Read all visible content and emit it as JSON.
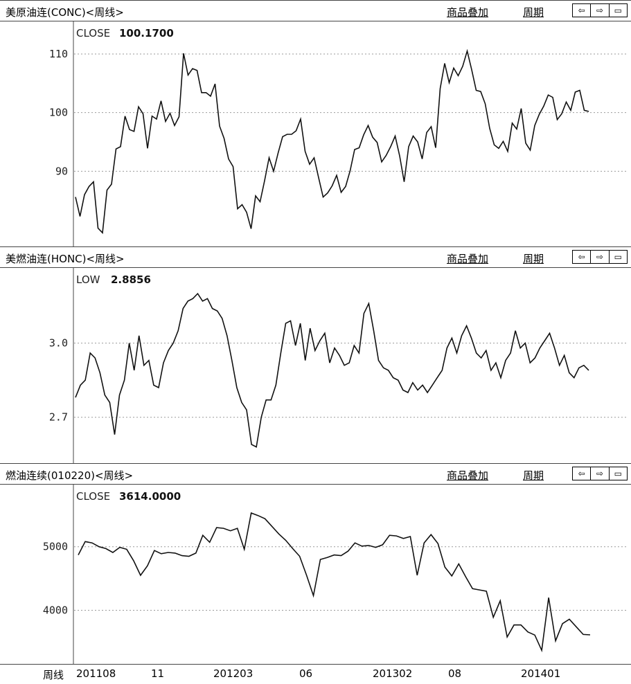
{
  "menu": {
    "overlay": "商品叠加",
    "period": "周期"
  },
  "nav": {
    "left": "⇦",
    "right": "⇨",
    "layout": "▭"
  },
  "x_axis": {
    "unit_label": "周线",
    "ticks": [
      "201108",
      "11",
      "201203",
      "06",
      "201302",
      "08",
      "201401"
    ]
  },
  "chart_data": [
    {
      "type": "line",
      "panel_title": "美原油连(CONC)<周线>",
      "value_name": "CLOSE",
      "value_current": "100.1700",
      "y_ticks": [
        "110",
        "100",
        "90"
      ],
      "ylim": [
        78,
        112
      ],
      "grid": true,
      "values": [
        85.6,
        82.3,
        86.0,
        87.4,
        88.2,
        80.3,
        79.5,
        86.8,
        87.8,
        93.8,
        94.2,
        99.4,
        97.1,
        96.8,
        101.0,
        99.8,
        93.9,
        99.4,
        98.9,
        102.0,
        98.5,
        99.9,
        97.8,
        99.3,
        110.1,
        106.4,
        107.5,
        107.2,
        103.4,
        103.4,
        102.8,
        104.9,
        97.7,
        95.6,
        92.1,
        90.8,
        83.6,
        84.3,
        83.0,
        80.2,
        85.8,
        84.8,
        88.4,
        92.3,
        90.0,
        93.1,
        95.9,
        96.3,
        96.3,
        96.9,
        98.9,
        93.4,
        91.2,
        92.3,
        88.9,
        85.6,
        86.3,
        87.5,
        89.3,
        86.4,
        87.4,
        90.1,
        93.7,
        94.0,
        96.2,
        97.8,
        95.8,
        94.9,
        91.6,
        92.7,
        94.2,
        96.0,
        92.6,
        88.2,
        94.2,
        96.0,
        95.0,
        92.1,
        96.6,
        97.6,
        94.0,
        104.1,
        108.4,
        105.1,
        107.6,
        106.3,
        107.9,
        110.5,
        107.3,
        103.8,
        103.6,
        101.5,
        97.3,
        94.5,
        93.9,
        95.1,
        93.4,
        98.2,
        97.2,
        100.7,
        94.8,
        93.6,
        97.8,
        99.7,
        101.1,
        103.0,
        102.6,
        98.8,
        99.8,
        101.8,
        100.4,
        103.5,
        103.8,
        100.4,
        100.2
      ]
    },
    {
      "type": "line",
      "panel_title": "美燃油连(HONC)<周线>",
      "value_name": "LOW",
      "value_current": "2.8856",
      "y_ticks": [
        "3.0",
        "2.7"
      ],
      "ylim": [
        2.52,
        3.22
      ],
      "grid": true,
      "values": [
        2.78,
        2.83,
        2.85,
        2.96,
        2.94,
        2.88,
        2.79,
        2.76,
        2.63,
        2.79,
        2.85,
        3.0,
        2.89,
        3.03,
        2.91,
        2.93,
        2.83,
        2.82,
        2.92,
        2.97,
        3.0,
        3.05,
        3.14,
        3.17,
        3.18,
        3.2,
        3.17,
        3.18,
        3.14,
        3.13,
        3.1,
        3.03,
        2.93,
        2.82,
        2.76,
        2.73,
        2.59,
        2.58,
        2.7,
        2.77,
        2.77,
        2.83,
        2.96,
        3.08,
        3.09,
        2.99,
        3.08,
        2.93,
        3.06,
        2.97,
        3.01,
        3.04,
        2.92,
        2.98,
        2.95,
        2.91,
        2.92,
        2.99,
        2.96,
        3.12,
        3.16,
        3.05,
        2.93,
        2.9,
        2.89,
        2.86,
        2.85,
        2.81,
        2.8,
        2.84,
        2.81,
        2.83,
        2.8,
        2.83,
        2.86,
        2.89,
        2.98,
        3.02,
        2.96,
        3.03,
        3.07,
        3.02,
        2.96,
        2.94,
        2.97,
        2.89,
        2.92,
        2.86,
        2.93,
        2.96,
        3.05,
        2.98,
        3.0,
        2.92,
        2.94,
        2.98,
        3.01,
        3.04,
        2.98,
        2.91,
        2.95,
        2.88,
        2.86,
        2.9,
        2.91,
        2.89
      ]
    },
    {
      "type": "line",
      "panel_title": "燃油连续(010220)<周线>",
      "value_name": "CLOSE",
      "value_current": "3614.0000",
      "y_ticks": [
        "5000",
        "4000"
      ],
      "ylim": [
        3200,
        5650
      ],
      "grid": true,
      "values": [
        4870,
        5080,
        5060,
        5000,
        4970,
        4910,
        4990,
        4960,
        4780,
        4550,
        4700,
        4940,
        4890,
        4910,
        4900,
        4860,
        4850,
        4900,
        5180,
        5070,
        5300,
        5290,
        5250,
        5290,
        4960,
        5530,
        5490,
        5440,
        5320,
        5200,
        5100,
        4970,
        4850,
        4550,
        4230,
        4800,
        4830,
        4870,
        4860,
        4930,
        5060,
        5010,
        5020,
        4990,
        5030,
        5180,
        5170,
        5130,
        5160,
        4550,
        5060,
        5190,
        5050,
        4680,
        4540,
        4730,
        4530,
        4340,
        4320,
        4300,
        3890,
        4150,
        3580,
        3770,
        3770,
        3660,
        3610,
        3370,
        4200,
        3520,
        3790,
        3860,
        3740,
        3620,
        3614
      ]
    }
  ]
}
